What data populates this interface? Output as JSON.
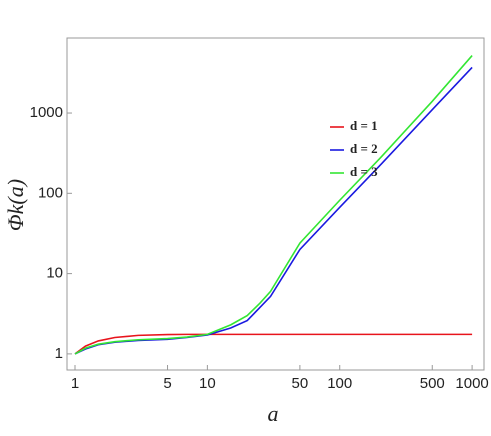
{
  "chart_data": {
    "type": "line",
    "xlabel": "a",
    "ylabel": "Φk(a)",
    "x": [
      1,
      1.2,
      1.5,
      2,
      3,
      5,
      7,
      10,
      15,
      20,
      25,
      30,
      50,
      100,
      200,
      500,
      1000
    ],
    "series": [
      {
        "name": "d = 1",
        "color": "#e8141c",
        "values": [
          1,
          1.25,
          1.45,
          1.6,
          1.7,
          1.74,
          1.75,
          1.75,
          1.75,
          1.75,
          1.75,
          1.75,
          1.75,
          1.75,
          1.75,
          1.75,
          1.75
        ]
      },
      {
        "name": "d = 2",
        "color": "#1a1ae0",
        "values": [
          1,
          1.15,
          1.3,
          1.4,
          1.47,
          1.52,
          1.6,
          1.72,
          2.1,
          2.6,
          3.8,
          5.2,
          20,
          67,
          220,
          1100,
          3700
        ]
      },
      {
        "name": "d = 3",
        "color": "#33e633",
        "values": [
          1,
          1.18,
          1.32,
          1.42,
          1.5,
          1.55,
          1.62,
          1.75,
          2.3,
          3.0,
          4.3,
          6,
          24,
          82,
          270,
          1400,
          5200
        ]
      }
    ],
    "xlim": [
      0.87,
      1230
    ],
    "ylim": [
      0.63,
      8600
    ],
    "xticks": [
      1,
      5,
      10,
      50,
      100,
      500,
      1000
    ],
    "yticks": [
      1,
      10,
      100,
      1000
    ],
    "xscale": "log",
    "yscale": "log",
    "grid": false,
    "legend": "upper right"
  }
}
